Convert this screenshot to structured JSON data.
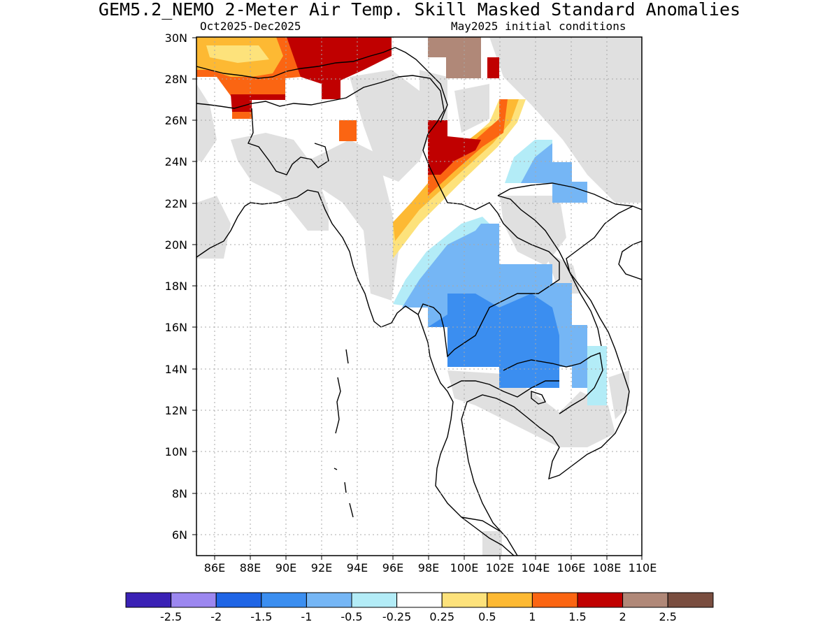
{
  "header": {
    "title": "GEM5.2_NEMO 2-Meter Air Temp. Skill Masked Standard Anomalies",
    "period": "Oct2025-Dec2025",
    "init": "May2025 initial conditions"
  },
  "map": {
    "lon_range": [
      85,
      110
    ],
    "lat_range": [
      5,
      30
    ],
    "lon_labels": [
      "86E",
      "88E",
      "90E",
      "92E",
      "94E",
      "96E",
      "98E",
      "100E",
      "102E",
      "104E",
      "106E",
      "108E",
      "110E"
    ],
    "lat_labels": [
      "30N",
      "28N",
      "26N",
      "24N",
      "22N",
      "20N",
      "18N",
      "16N",
      "14N",
      "12N",
      "10N",
      "8N",
      "6N"
    ],
    "gridlines": true,
    "mask_color": "#e0e0e0"
  },
  "colorbar": {
    "labels": [
      "-2.5",
      "-2",
      "-1.5",
      "-1",
      "-0.5",
      "-0.25",
      "0.25",
      "0.5",
      "1",
      "1.5",
      "2",
      "2.5"
    ],
    "colors": [
      "#3a21b5",
      "#9c87f0",
      "#1f65e6",
      "#3b8ef0",
      "#75b6f5",
      "#b3ecf7",
      "#ffffff",
      "#fde27b",
      "#fdb933",
      "#fb6512",
      "#c00000",
      "#b08878",
      "#7a4e40"
    ]
  }
}
